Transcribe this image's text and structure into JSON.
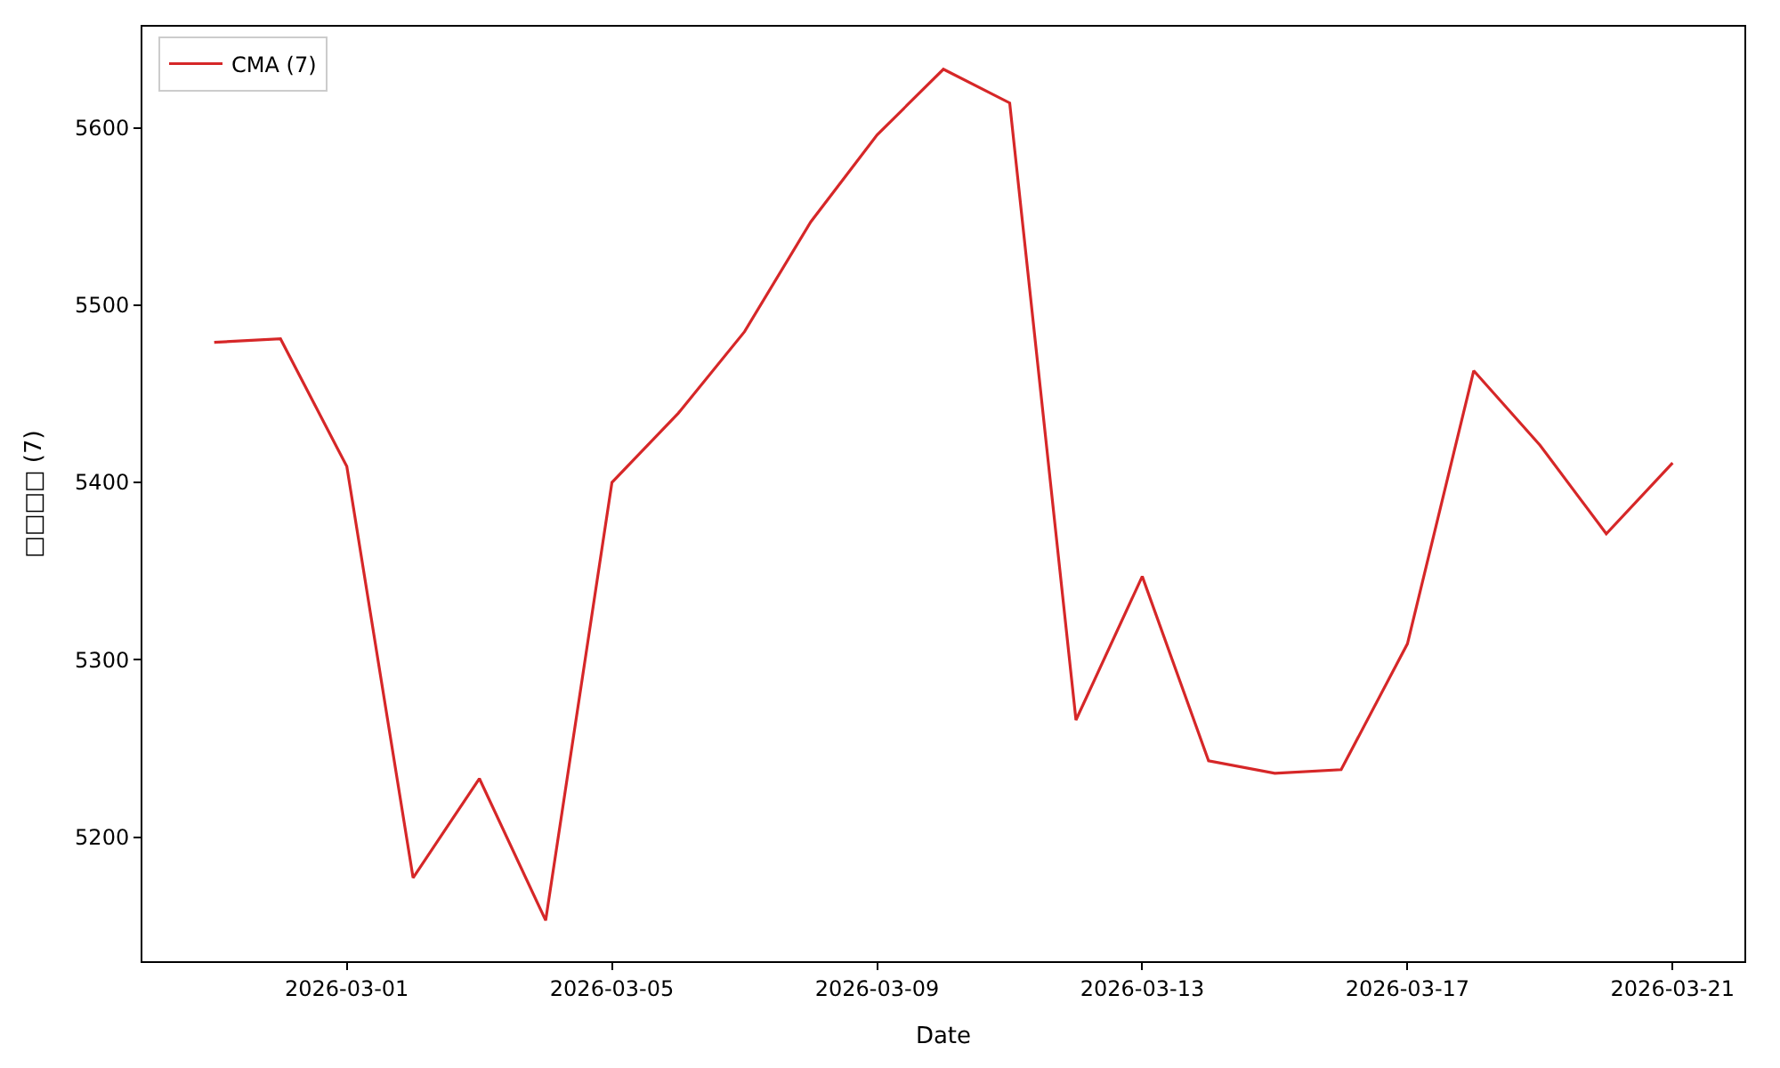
{
  "chart_data": {
    "type": "line",
    "xlabel": "Date",
    "ylabel": "□□□□ (7)",
    "x": [
      "2026-02-27",
      "2026-02-28",
      "2026-03-01",
      "2026-03-02",
      "2026-03-03",
      "2026-03-04",
      "2026-03-05",
      "2026-03-06",
      "2026-03-07",
      "2026-03-08",
      "2026-03-09",
      "2026-03-10",
      "2026-03-11",
      "2026-03-12",
      "2026-03-13",
      "2026-03-14",
      "2026-03-15",
      "2026-03-16",
      "2026-03-17",
      "2026-03-18",
      "2026-03-19",
      "2026-03-20",
      "2026-03-21"
    ],
    "series": [
      {
        "name": "CMA (7)",
        "color": "#d62728",
        "values": [
          5479,
          5481,
          5409,
          5177,
          5233,
          5153,
          5400,
          5439,
          5485,
          5547,
          5596,
          5633,
          5614,
          5266,
          5347,
          5243,
          5236,
          5238,
          5309,
          5463,
          5421,
          5371,
          5411
        ]
      }
    ],
    "xlim": [
      "2026-02-25T22:00",
      "2026-03-22T02:00"
    ],
    "xticks": [
      "2026-03-01",
      "2026-03-05",
      "2026-03-09",
      "2026-03-13",
      "2026-03-17",
      "2026-03-21"
    ],
    "ylim": [
      5130,
      5657
    ],
    "yticks": [
      5200,
      5300,
      5400,
      5500,
      5600
    ],
    "legend": "top left",
    "marker": "none",
    "line_style": "solid"
  }
}
